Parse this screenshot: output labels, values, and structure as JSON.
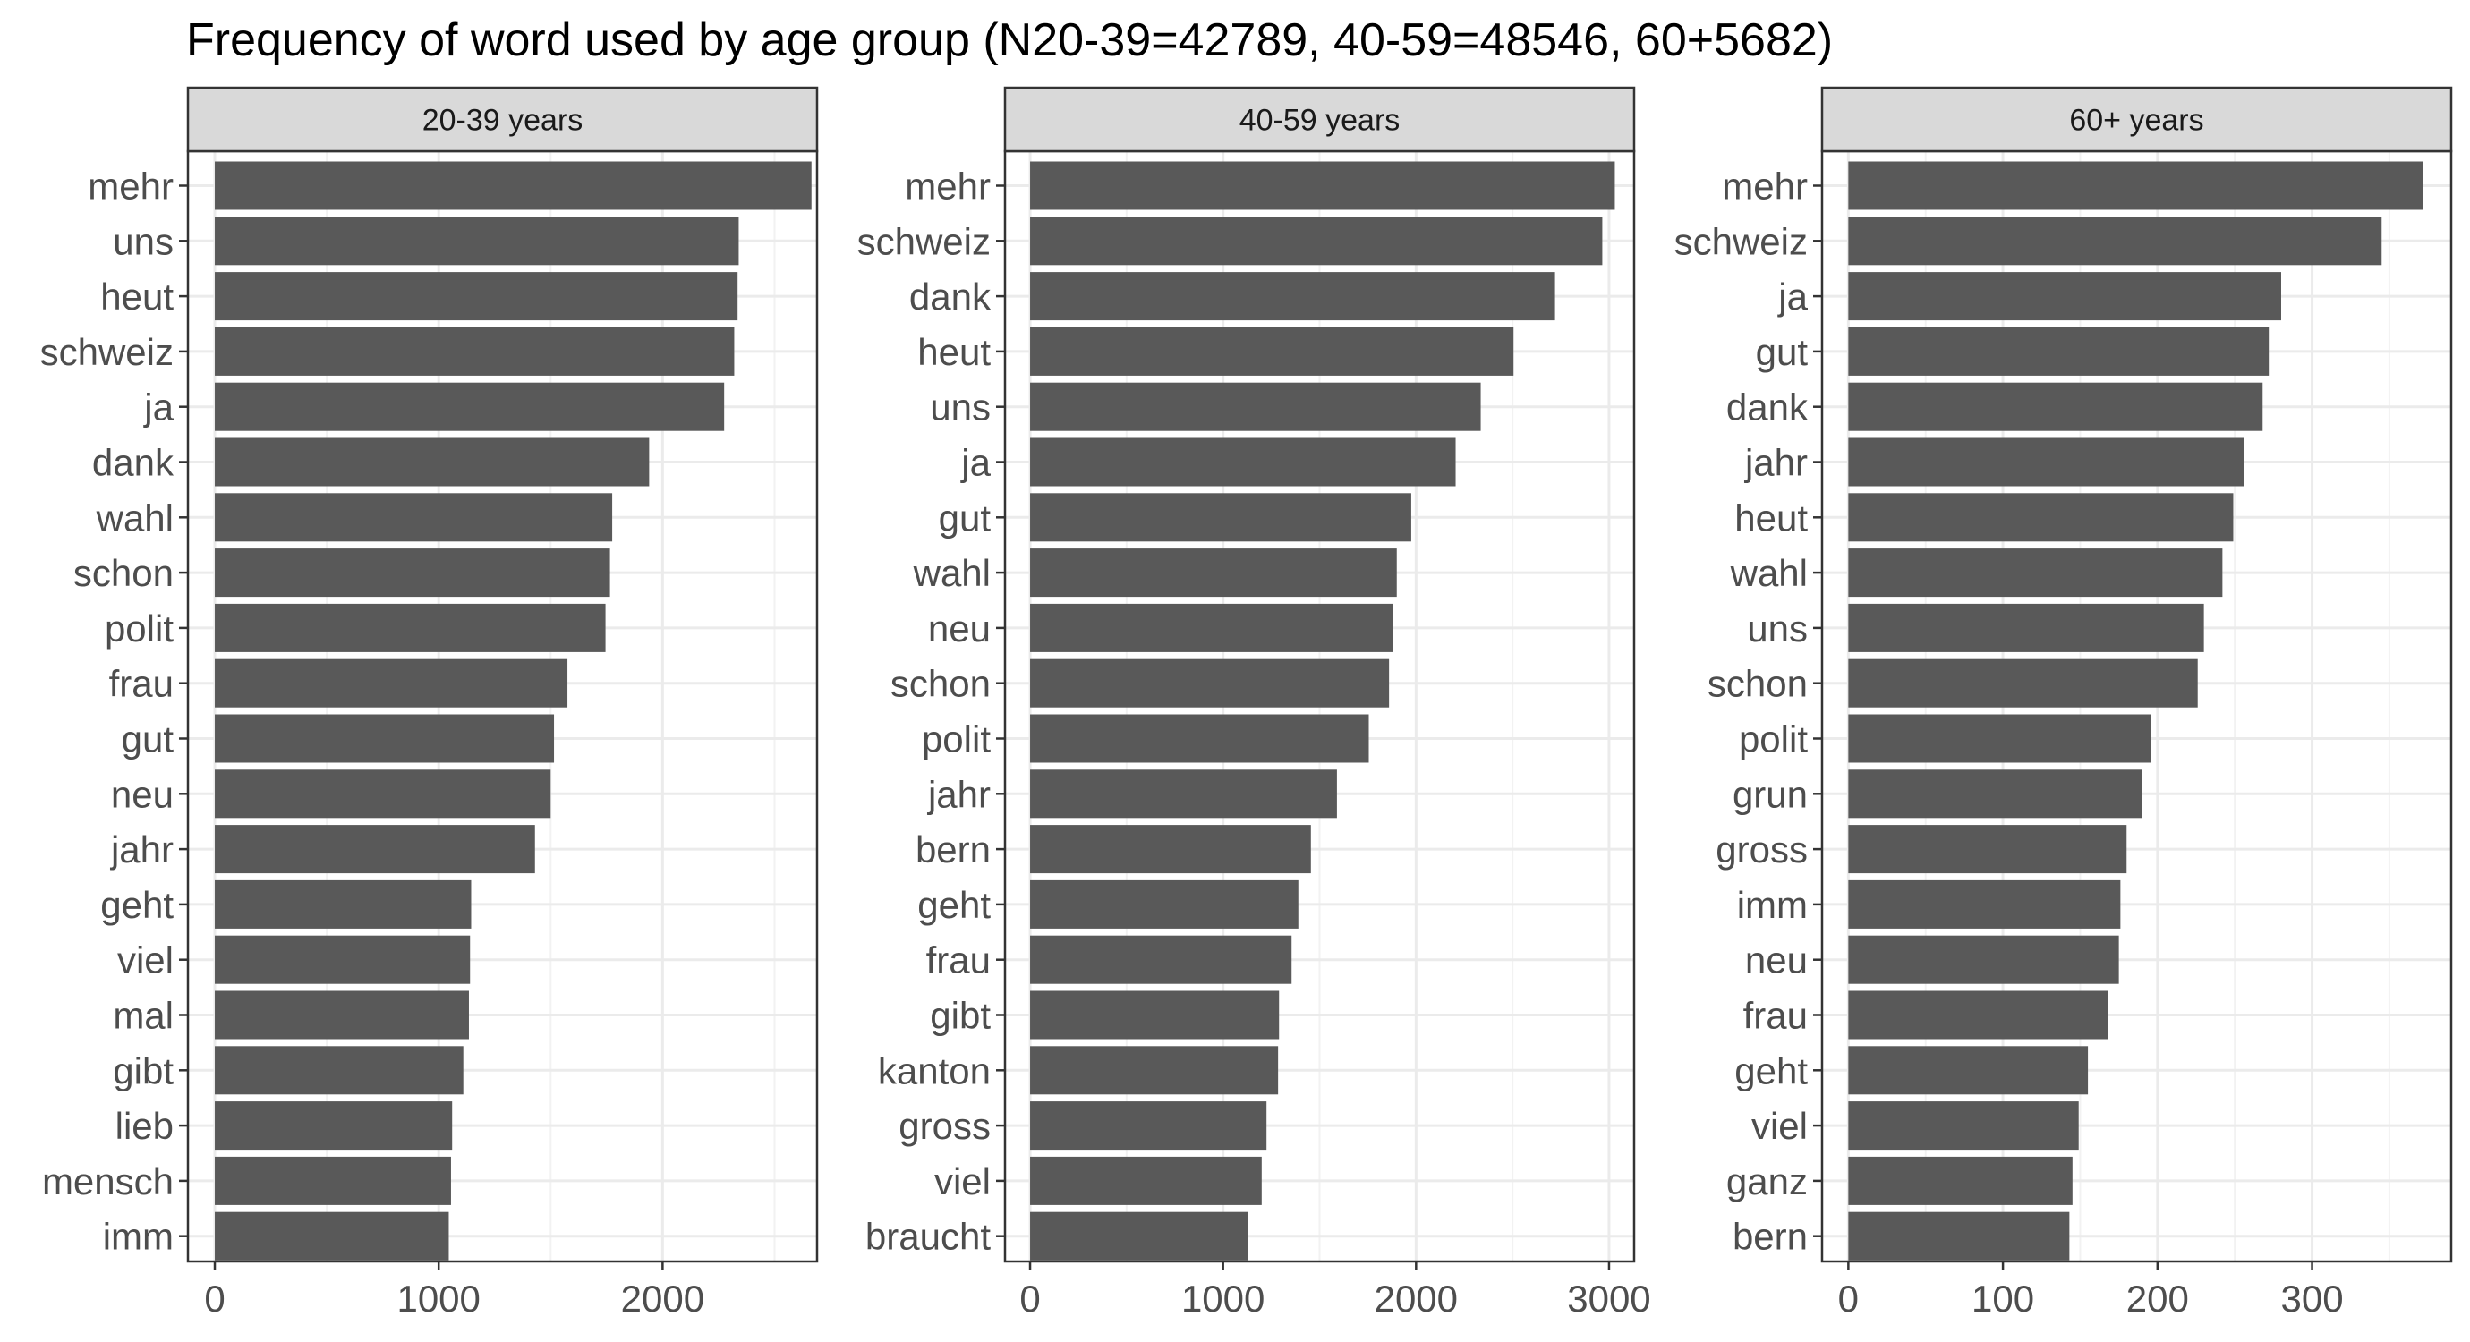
{
  "chart_data": {
    "type": "bar",
    "title": "Frequency of word used by age group (N20-39=42789, 40-59=48546, 60+5682)",
    "orientation": "horizontal",
    "grid": true,
    "colors": {
      "bar": "#595959",
      "strip_background": "#d9d9d9",
      "panel_border": "#333333",
      "grid_major": "#ebebeb",
      "grid_minor": "#f2f2f2",
      "tick_text": "#4d4d4d"
    },
    "panels": [
      {
        "strip_label": "20-39 years",
        "xlim": [
          -120,
          2690
        ],
        "xticks": [
          0,
          1000,
          2000
        ],
        "xtick_labels": [
          "0",
          "1000",
          "2000"
        ],
        "categories": [
          "mehr",
          "uns",
          "heut",
          "schweiz",
          "ja",
          "dank",
          "wahl",
          "schon",
          "polit",
          "frau",
          "gut",
          "neu",
          "jahr",
          "geht",
          "viel",
          "mal",
          "gibt",
          "lieb",
          "mensch",
          "imm"
        ],
        "values": [
          2665,
          2340,
          2335,
          2320,
          2275,
          1940,
          1775,
          1765,
          1745,
          1575,
          1515,
          1500,
          1430,
          1145,
          1140,
          1135,
          1110,
          1060,
          1055,
          1045
        ]
      },
      {
        "strip_label": "40-59 years",
        "xlim": [
          -130,
          3130
        ],
        "xticks": [
          0,
          1000,
          2000,
          3000
        ],
        "xtick_labels": [
          "0",
          "1000",
          "2000",
          "3000"
        ],
        "categories": [
          "mehr",
          "schweiz",
          "dank",
          "heut",
          "uns",
          "ja",
          "gut",
          "wahl",
          "neu",
          "schon",
          "polit",
          "jahr",
          "bern",
          "geht",
          "frau",
          "gibt",
          "kanton",
          "gross",
          "viel",
          "braucht"
        ],
        "values": [
          3030,
          2965,
          2720,
          2505,
          2335,
          2205,
          1975,
          1900,
          1880,
          1860,
          1755,
          1590,
          1455,
          1390,
          1355,
          1290,
          1285,
          1225,
          1200,
          1130
        ]
      },
      {
        "strip_label": "60+ years",
        "xlim": [
          -17,
          390
        ],
        "xticks": [
          0,
          100,
          200,
          300
        ],
        "xtick_labels": [
          "0",
          "100",
          "200",
          "300"
        ],
        "categories": [
          "mehr",
          "schweiz",
          "ja",
          "gut",
          "dank",
          "jahr",
          "heut",
          "wahl",
          "uns",
          "schon",
          "polit",
          "grun",
          "gross",
          "imm",
          "neu",
          "frau",
          "geht",
          "viel",
          "ganz",
          "bern"
        ],
        "values": [
          372,
          345,
          280,
          272,
          268,
          256,
          249,
          242,
          230,
          226,
          196,
          190,
          180,
          176,
          175,
          168,
          155,
          149,
          145,
          143
        ]
      }
    ]
  }
}
